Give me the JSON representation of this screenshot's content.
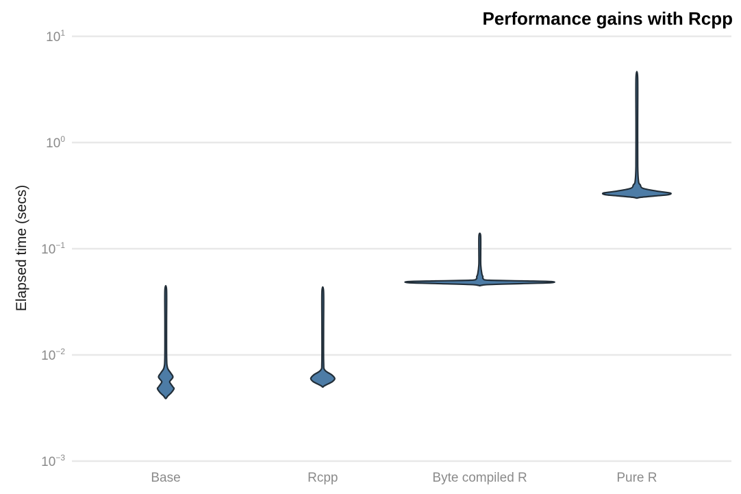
{
  "chart_data": {
    "type": "violin",
    "title": "Performance gains with Rcpp",
    "ylabel": "Elapsed time (secs)",
    "xlabel": "",
    "y_scale": "log10",
    "y_range_secs": [
      0.001,
      10
    ],
    "y_axis": {
      "tick_exponents": [
        1,
        0,
        -1,
        -2,
        -3
      ],
      "tick_labels": [
        "10^1",
        "10^0",
        "10^-1",
        "10^-2",
        "10^-3"
      ]
    },
    "categories": [
      "Base",
      "Rcpp",
      "Byte compiled R",
      "Pure R"
    ],
    "grid": "horizontal-major-only",
    "legend": "none",
    "violins": [
      {
        "category": "Base",
        "max_secs": 0.041,
        "min_secs": 0.0039,
        "peak_density_secs": [
          0.0062,
          0.0048
        ],
        "shape_note": "thin whisker from 0.041 down to ~0.008, double-lobed bulge around 0.005-0.0066",
        "profile": [
          [
            0.041,
            1.2
          ],
          [
            0.02,
            1.2
          ],
          [
            0.0095,
            1.3
          ],
          [
            0.0076,
            2.5
          ],
          [
            0.0068,
            7.0
          ],
          [
            0.0062,
            10.5
          ],
          [
            0.0057,
            6.5
          ],
          [
            0.0055,
            6.0
          ],
          [
            0.005,
            10.5
          ],
          [
            0.0048,
            12.0
          ],
          [
            0.0044,
            8.0
          ],
          [
            0.0041,
            3.0
          ],
          [
            0.0039,
            0.6
          ]
        ]
      },
      {
        "category": "Rcpp",
        "max_secs": 0.04,
        "min_secs": 0.005,
        "peak_density_secs": [
          0.006
        ],
        "shape_note": "thin whisker from 0.040 down to ~0.0075, single diamond bulge at ~0.006",
        "profile": [
          [
            0.0395,
            1.2
          ],
          [
            0.018,
            1.2
          ],
          [
            0.0085,
            1.3
          ],
          [
            0.0072,
            3.0
          ],
          [
            0.0065,
            13.0
          ],
          [
            0.006,
            17.5
          ],
          [
            0.0056,
            14.0
          ],
          [
            0.0053,
            7.0
          ],
          [
            0.0051,
            2.0
          ],
          [
            0.005,
            0.6
          ]
        ]
      },
      {
        "category": "Byte compiled R",
        "max_secs": 0.133,
        "min_secs": 0.045,
        "peak_density_secs": [
          0.048
        ],
        "shape_note": "thin spike up to ~0.13, very wide flat lens at ~0.048-0.050",
        "profile": [
          [
            0.133,
            1.2
          ],
          [
            0.09,
            1.3
          ],
          [
            0.07,
            1.4
          ],
          [
            0.058,
            3.0
          ],
          [
            0.0545,
            4.5
          ],
          [
            0.052,
            5.0
          ],
          [
            0.0505,
            14.0
          ],
          [
            0.0497,
            70.0
          ],
          [
            0.049,
            105.0
          ],
          [
            0.0478,
            104.0
          ],
          [
            0.047,
            65.0
          ],
          [
            0.046,
            14.0
          ],
          [
            0.0452,
            2.0
          ],
          [
            0.0449,
            0.6
          ]
        ]
      },
      {
        "category": "Pure R",
        "max_secs": 4.1,
        "min_secs": 0.3,
        "peak_density_secs": [
          0.33
        ],
        "shape_note": "long thin spike up to ~4, wide flat lens at ~0.31-0.35",
        "profile": [
          [
            4.1,
            1.2
          ],
          [
            1.5,
            1.2
          ],
          [
            0.6,
            1.3
          ],
          [
            0.43,
            2.5
          ],
          [
            0.4,
            5.0
          ],
          [
            0.37,
            9.0
          ],
          [
            0.348,
            30.0
          ],
          [
            0.334,
            49.0
          ],
          [
            0.322,
            45.0
          ],
          [
            0.314,
            26.0
          ],
          [
            0.305,
            6.0
          ],
          [
            0.3,
            0.8
          ]
        ]
      }
    ],
    "colors": {
      "background": "#ffffff",
      "violin_fill": "#4d7ca6",
      "violin_stroke": "#222e38",
      "gridline": "#e8e8e8",
      "tick_text": "#8a8a8a",
      "axis_title_text": "#1a1a1a",
      "title_text": "#000000"
    }
  }
}
